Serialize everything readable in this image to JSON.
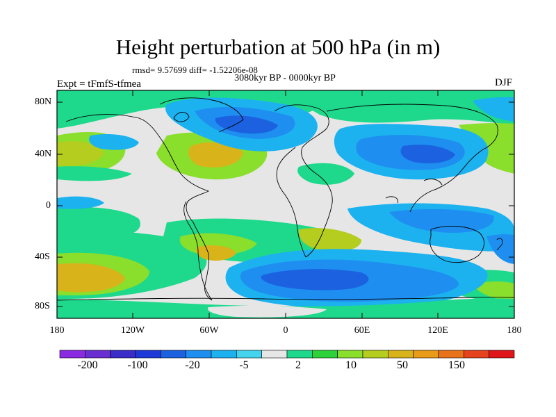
{
  "title": "Height perturbation at 500 hPa (in m)",
  "stats": "rmsd= 9.57699 diff= -1.52206e-08",
  "period": "3080kyr BP - 0000kyr BP",
  "experiment": "Expt = tFmfS-tfmea",
  "season": "DJF",
  "map_data": {
    "type": "contour_map",
    "projection": "cylindrical equidistant",
    "lat_ticks": [
      "80N",
      "40N",
      "0",
      "40S",
      "80S"
    ],
    "lon_ticks": [
      "180",
      "120W",
      "60W",
      "0",
      "60E",
      "120E",
      "180"
    ],
    "colorbar_colors": [
      "#8a2be2",
      "#6a2fd0",
      "#3a2cc8",
      "#1f38d8",
      "#1c62e0",
      "#1e8ff0",
      "#1cb2ef",
      "#45d3ee",
      "#e6e6e6",
      "#1ed98c",
      "#2cd23a",
      "#8ade2c",
      "#b4cd1e",
      "#d8b41a",
      "#e89a18",
      "#e8731a",
      "#e5431d",
      "#e0141b"
    ],
    "colorbar_labels": [
      "-200",
      "-100",
      "-20",
      "-5",
      "2",
      "10",
      "50",
      "150"
    ]
  }
}
